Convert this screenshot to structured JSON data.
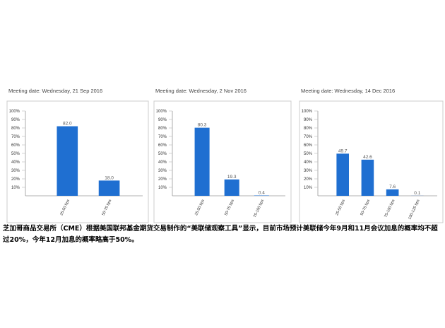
{
  "chart_data": [
    {
      "type": "bar",
      "title": "Meeting date: Wednesday, 21 Sep 2016",
      "categories": [
        "25-50 bps",
        "50-75 bps"
      ],
      "values": [
        82.0,
        18.0
      ],
      "value_labels": [
        "82.0",
        "18.0"
      ],
      "color": "#1f6fd1",
      "ylim": [
        0,
        100
      ],
      "yticks": [
        {
          "value": 10,
          "label": "10%"
        },
        {
          "value": 20,
          "label": "20%"
        },
        {
          "value": 30,
          "label": "30%"
        },
        {
          "value": 40,
          "label": "40%"
        },
        {
          "value": 50,
          "label": "50%"
        },
        {
          "value": 60,
          "label": "60%"
        },
        {
          "value": 70,
          "label": "70%"
        },
        {
          "value": 80,
          "label": "80%"
        },
        {
          "value": 90,
          "label": "90%"
        },
        {
          "value": 100,
          "label": "100%"
        }
      ],
      "grid": false
    },
    {
      "type": "bar",
      "title": "Meeting date: Wednesday, 2 Nov 2016",
      "categories": [
        "25-50 bps",
        "50-75 bps",
        "75-100 bps"
      ],
      "values": [
        80.3,
        19.3,
        0.4
      ],
      "color": "#1f6fd1",
      "ylim": [
        0,
        100
      ],
      "yticks": [
        {
          "value": 10,
          "label": "10%"
        },
        {
          "value": 20,
          "label": "20%"
        },
        {
          "value": 30,
          "label": "30%"
        },
        {
          "value": 40,
          "label": "40%"
        },
        {
          "value": 50,
          "label": "50%"
        },
        {
          "value": 60,
          "label": "60%"
        },
        {
          "value": 70,
          "label": "70%"
        },
        {
          "value": 80,
          "label": "80%"
        },
        {
          "value": 90,
          "label": "90%"
        },
        {
          "value": 100,
          "label": "100%"
        }
      ],
      "grid": false
    },
    {
      "type": "bar",
      "title": "Meeting date: Wednesday, 14 Dec 2016",
      "categories": [
        "25-50 bps",
        "50-75 bps",
        "75-100 bps",
        "100-125 bps"
      ],
      "values": [
        49.7,
        42.6,
        7.6,
        0.1
      ],
      "color": "#1f6fd1",
      "ylim": [
        0,
        100
      ],
      "yticks": [
        {
          "value": 10,
          "label": "10%"
        },
        {
          "value": 20,
          "label": "20%"
        },
        {
          "value": 30,
          "label": "30%"
        },
        {
          "value": 40,
          "label": "40%"
        },
        {
          "value": 50,
          "label": "50%"
        },
        {
          "value": 60,
          "label": "60%"
        },
        {
          "value": 70,
          "label": "70%"
        },
        {
          "value": 80,
          "label": "80%"
        },
        {
          "value": 90,
          "label": "90%"
        },
        {
          "value": 100,
          "label": "100%"
        }
      ],
      "grid": false
    }
  ],
  "caption": "芝加哥商品交易所（CME）根据美国联邦基金期货交易制作的“美联储观察工具”显示，目前市场预计美联储今年9月和11月会议加息的概率均不超过20%，今年12月加息的概率略高于50%。"
}
